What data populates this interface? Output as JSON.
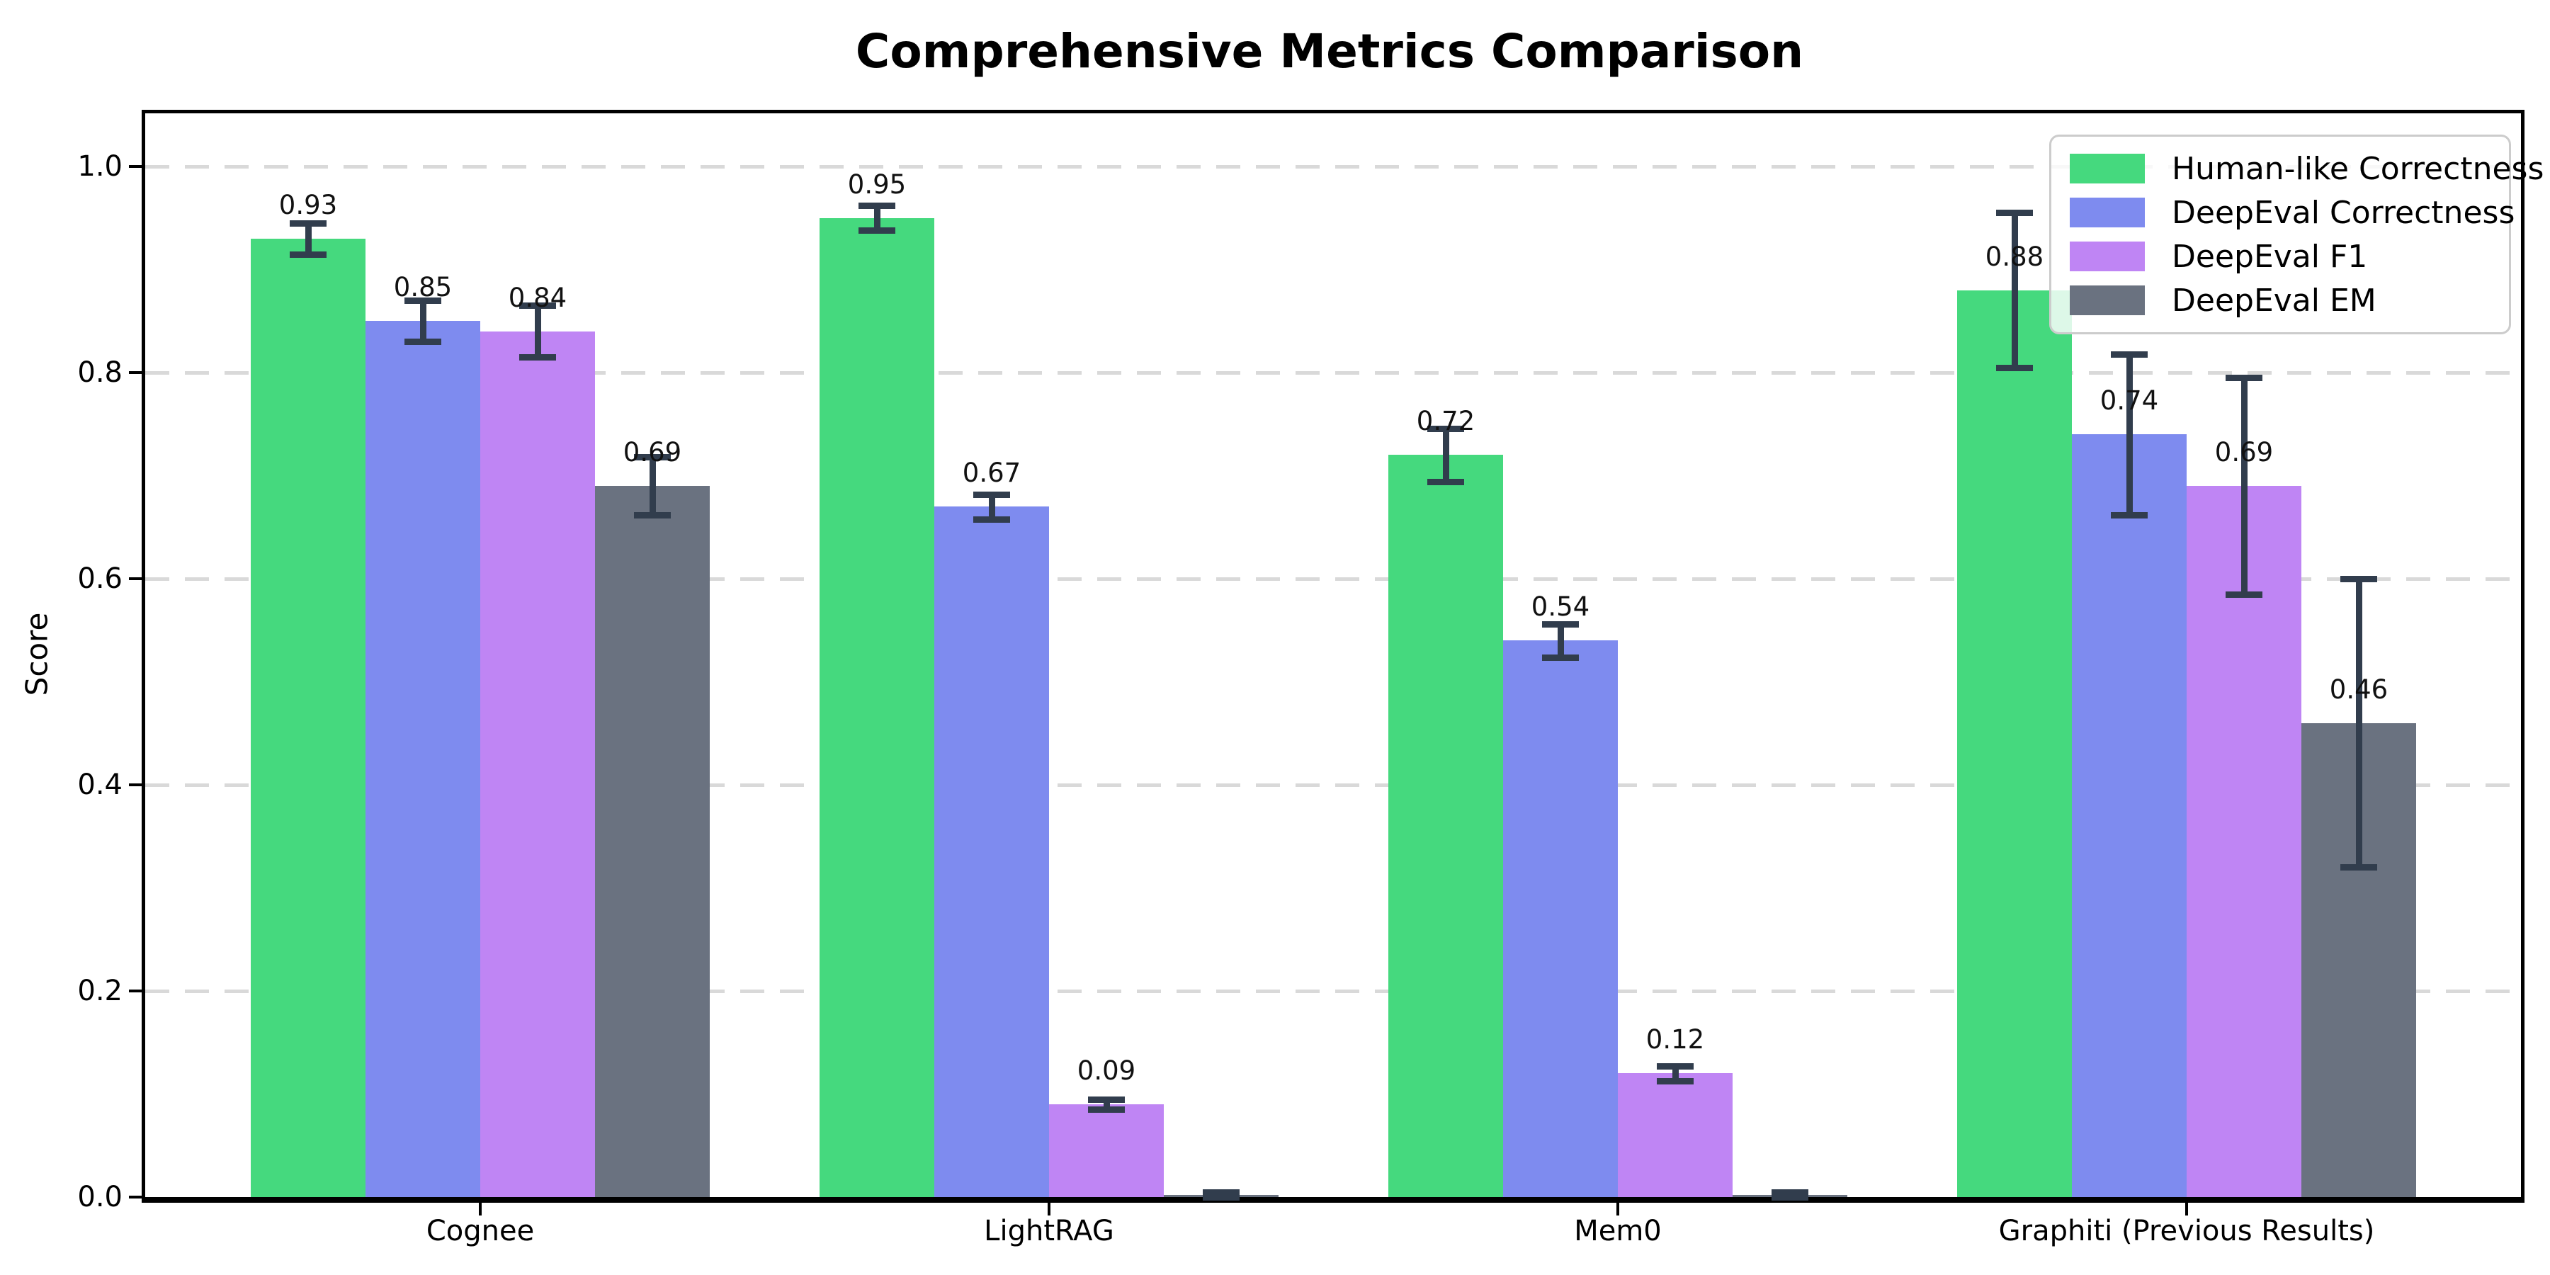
{
  "chart_data": {
    "type": "bar",
    "title": "Comprehensive Metrics Comparison",
    "ylabel": "Score",
    "xlabel": "",
    "ylim": [
      0,
      1.05
    ],
    "ytick_labels": [
      "0.0",
      "0.2",
      "0.4",
      "0.6",
      "0.8",
      "1.0"
    ],
    "grid": {
      "axis": "y",
      "style": "dashed",
      "color": "#d9d9d9"
    },
    "legend_position": "upper right",
    "background_color": "#ffffff",
    "error_bar_color": "#313d4d",
    "categories": [
      "Cognee",
      "LightRAG",
      "Mem0",
      "Graphiti (Previous Results)"
    ],
    "series": [
      {
        "name": "Human-like Correctness",
        "color": "#45d97e",
        "values": [
          0.93,
          0.95,
          0.72,
          0.88
        ],
        "errors": [
          0.015,
          0.012,
          0.026,
          0.075
        ],
        "bar_labels": [
          "0.93",
          "0.95",
          "0.72",
          "0.88"
        ]
      },
      {
        "name": "DeepEval Correctness",
        "color": "#7e8bef",
        "values": [
          0.85,
          0.67,
          0.54,
          0.74
        ],
        "errors": [
          0.02,
          0.012,
          0.016,
          0.078
        ],
        "bar_labels": [
          "0.85",
          "0.67",
          "0.54",
          "0.74"
        ]
      },
      {
        "name": "DeepEval F1",
        "color": "#bf85f4",
        "values": [
          0.84,
          0.09,
          0.12,
          0.69
        ],
        "errors": [
          0.025,
          0.005,
          0.007,
          0.105
        ],
        "bar_labels": [
          "0.84",
          "0.09",
          "0.12",
          "0.69"
        ]
      },
      {
        "name": "DeepEval EM",
        "color": "#6a7280",
        "values": [
          0.69,
          0.002,
          0.002,
          0.46
        ],
        "errors": [
          0.028,
          0.003,
          0.003,
          0.14
        ],
        "bar_labels": [
          "0.69",
          "",
          "",
          "0.46"
        ]
      }
    ]
  }
}
